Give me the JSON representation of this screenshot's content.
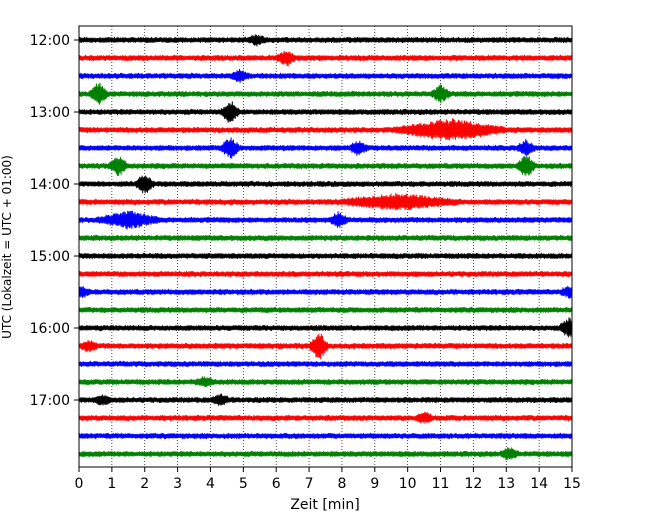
{
  "chart_data": {
    "type": "line",
    "title": "",
    "xlabel": "Zeit  [min]",
    "ylabel": "UTC (Lokalzeit = UTC + 01:00)",
    "xlim": [
      0,
      15
    ],
    "x_ticks": [
      "0",
      "1",
      "2",
      "3",
      "4",
      "5",
      "6",
      "7",
      "8",
      "9",
      "10",
      "11",
      "12",
      "13",
      "14",
      "15"
    ],
    "y_ticks": [
      "12:00",
      "13:00",
      "14:00",
      "15:00",
      "16:00",
      "17:00"
    ],
    "grid": "vertical-dotted",
    "trace_interval_min": 15,
    "start_time": "12:00",
    "colors": [
      "#000000",
      "#ff0000",
      "#0000ff",
      "#008000"
    ],
    "traces": [
      {
        "time": "12:00",
        "color": "#000000",
        "events": [
          {
            "x": 5.4,
            "amp": 0.5
          }
        ]
      },
      {
        "time": "12:15",
        "color": "#ff0000",
        "events": [
          {
            "x": 6.3,
            "amp": 0.9
          }
        ]
      },
      {
        "time": "12:30",
        "color": "#0000ff",
        "events": [
          {
            "x": 4.9,
            "amp": 0.7
          }
        ]
      },
      {
        "time": "12:45",
        "color": "#008000",
        "events": [
          {
            "x": 0.6,
            "amp": 1.4
          },
          {
            "x": 11.0,
            "amp": 1.0
          }
        ]
      },
      {
        "time": "13:00",
        "color": "#000000",
        "events": [
          {
            "x": 4.6,
            "amp": 1.4
          }
        ]
      },
      {
        "time": "13:15",
        "color": "#ff0000",
        "events": [
          {
            "x": 11.3,
            "amp": 1.3,
            "width": 1.8
          }
        ]
      },
      {
        "time": "13:30",
        "color": "#0000ff",
        "events": [
          {
            "x": 4.6,
            "amp": 1.3
          },
          {
            "x": 8.5,
            "amp": 0.8
          },
          {
            "x": 13.6,
            "amp": 0.9
          }
        ]
      },
      {
        "time": "13:45",
        "color": "#008000",
        "events": [
          {
            "x": 1.2,
            "amp": 1.2
          },
          {
            "x": 13.6,
            "amp": 1.4
          }
        ]
      },
      {
        "time": "14:00",
        "color": "#000000",
        "events": [
          {
            "x": 2.0,
            "amp": 1.2
          }
        ]
      },
      {
        "time": "14:15",
        "color": "#ff0000",
        "events": [
          {
            "x": 9.7,
            "amp": 0.9,
            "width": 2.0
          }
        ]
      },
      {
        "time": "14:30",
        "color": "#0000ff",
        "events": [
          {
            "x": 1.5,
            "amp": 1.0,
            "width": 1.0
          },
          {
            "x": 7.9,
            "amp": 0.9
          }
        ]
      },
      {
        "time": "14:45",
        "color": "#008000",
        "events": []
      },
      {
        "time": "15:00",
        "color": "#000000",
        "events": []
      },
      {
        "time": "15:15",
        "color": "#ff0000",
        "events": []
      },
      {
        "time": "15:30",
        "color": "#0000ff",
        "events": [
          {
            "x": 0.05,
            "amp": 0.6
          },
          {
            "x": 14.9,
            "amp": 0.6
          }
        ]
      },
      {
        "time": "15:45",
        "color": "#008000",
        "events": []
      },
      {
        "time": "16:00",
        "color": "#000000",
        "events": [
          {
            "x": 14.9,
            "amp": 1.2
          }
        ]
      },
      {
        "time": "16:15",
        "color": "#ff0000",
        "events": [
          {
            "x": 7.3,
            "amp": 1.8
          },
          {
            "x": 0.3,
            "amp": 0.6
          }
        ]
      },
      {
        "time": "16:30",
        "color": "#0000ff",
        "events": []
      },
      {
        "time": "16:45",
        "color": "#008000",
        "events": [
          {
            "x": 3.8,
            "amp": 0.5
          }
        ]
      },
      {
        "time": "17:00",
        "color": "#000000",
        "events": [
          {
            "x": 4.3,
            "amp": 0.6
          },
          {
            "x": 0.7,
            "amp": 0.5
          }
        ]
      },
      {
        "time": "17:15",
        "color": "#ff0000",
        "events": [
          {
            "x": 10.5,
            "amp": 0.6
          }
        ]
      },
      {
        "time": "17:30",
        "color": "#0000ff",
        "events": []
      },
      {
        "time": "17:45",
        "color": "#008000",
        "events": [
          {
            "x": 13.1,
            "amp": 0.7
          }
        ]
      }
    ]
  }
}
